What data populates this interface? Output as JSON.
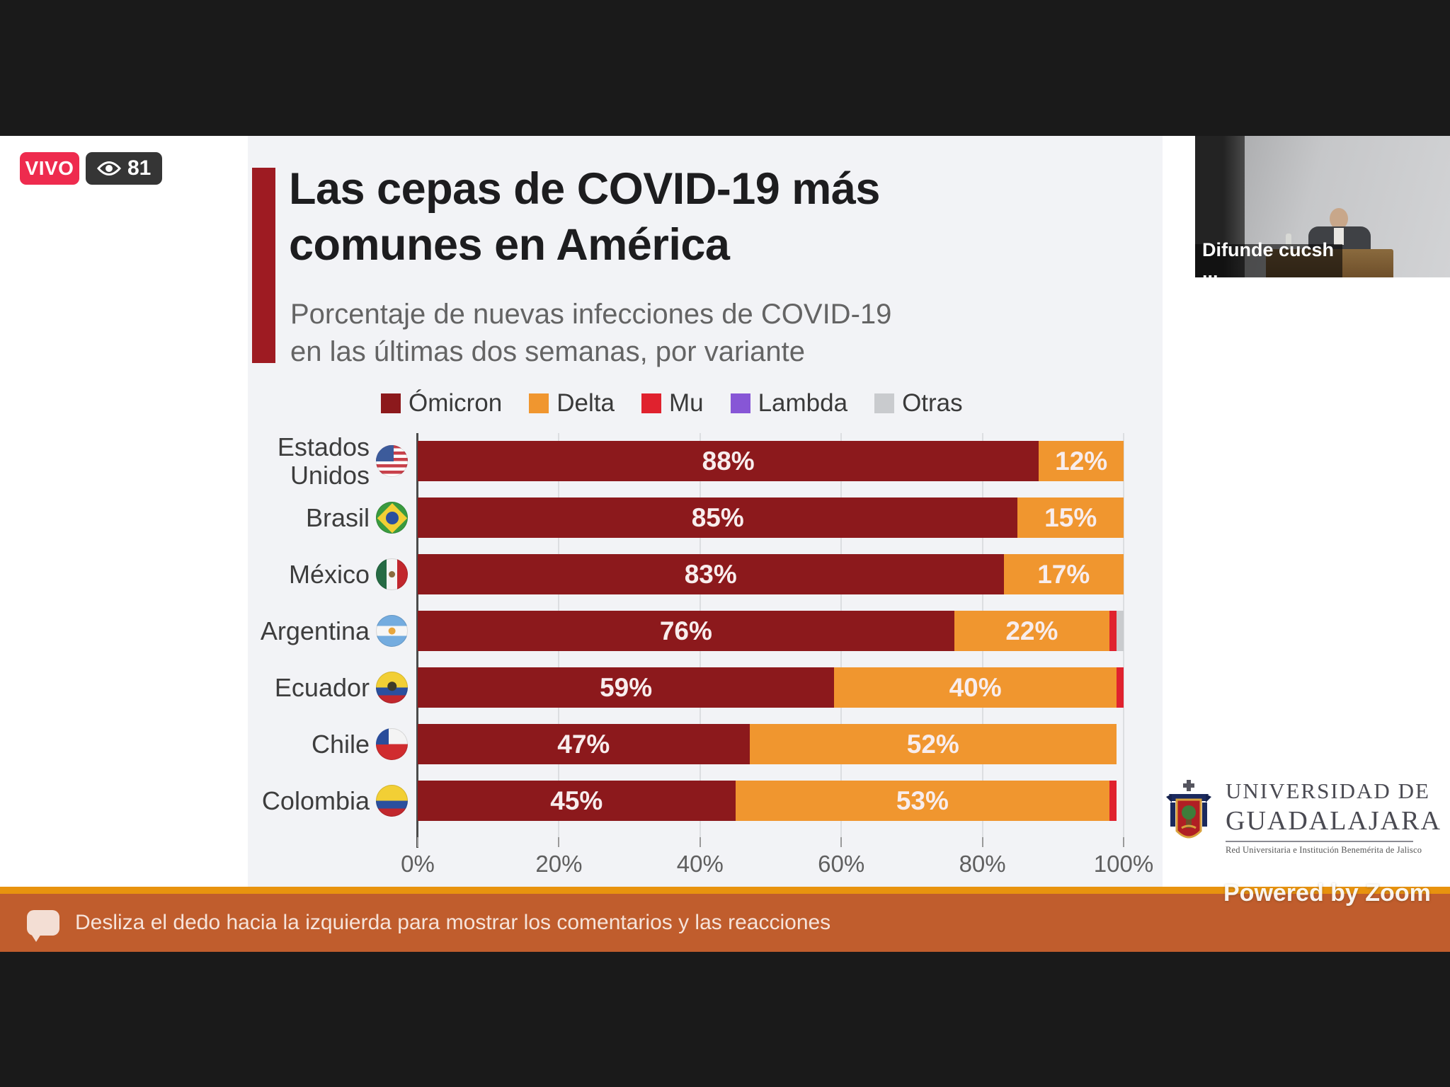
{
  "status": {
    "live_label": "VIVO",
    "viewer_count": "81"
  },
  "video_thumbnail": {
    "label": "Difunde cucsh ..."
  },
  "bottom_bar": {
    "message": "Desliza el dedo hacia la izquierda para mostrar los comentarios y las reacciones"
  },
  "watermark": {
    "powered_by": "Powered by Zoom"
  },
  "university": {
    "name_line1": "UNIVERSIDAD DE",
    "name_line2": "GUADALAJARA",
    "tagline": "Red Universitaria e Institución Benemérita de Jalisco"
  },
  "chart_data": {
    "type": "bar",
    "orientation": "horizontal",
    "stacked": true,
    "title": "Las cepas de COVID-19 más comunes en América",
    "title_lines": [
      "Las cepas de COVID-19 más",
      "comunes en América"
    ],
    "subtitle_lines": [
      "Porcentaje de nuevas infecciones de COVID-19",
      "en las últimas dos semanas, por variante"
    ],
    "xlabel": "",
    "ylabel": "",
    "xlim": [
      0,
      100
    ],
    "x_ticks": [
      "0%",
      "20%",
      "40%",
      "60%",
      "80%",
      "100%"
    ],
    "grid": true,
    "legend_position": "top",
    "legend": [
      {
        "name": "Ómicron",
        "color": "#8c191c"
      },
      {
        "name": "Delta",
        "color": "#f0962f"
      },
      {
        "name": "Mu",
        "color": "#e0222e"
      },
      {
        "name": "Lambda",
        "color": "#8756d6"
      },
      {
        "name": "Otras",
        "color": "#c9cbce"
      }
    ],
    "rows": [
      {
        "country": "Estados Unidos",
        "label_lines": "Estados\nUnidos",
        "flag": "us",
        "segments": [
          {
            "variant": "Ómicron",
            "value": 88,
            "label": "88%"
          },
          {
            "variant": "Delta",
            "value": 12,
            "label": "12%"
          }
        ]
      },
      {
        "country": "Brasil",
        "label_lines": "Brasil",
        "flag": "br",
        "segments": [
          {
            "variant": "Ómicron",
            "value": 85,
            "label": "85%"
          },
          {
            "variant": "Delta",
            "value": 15,
            "label": "15%"
          }
        ]
      },
      {
        "country": "México",
        "label_lines": "México",
        "flag": "mx",
        "segments": [
          {
            "variant": "Ómicron",
            "value": 83,
            "label": "83%"
          },
          {
            "variant": "Delta",
            "value": 17,
            "label": "17%"
          }
        ]
      },
      {
        "country": "Argentina",
        "label_lines": "Argentina",
        "flag": "ar",
        "segments": [
          {
            "variant": "Ómicron",
            "value": 76,
            "label": "76%"
          },
          {
            "variant": "Delta",
            "value": 22,
            "label": "22%"
          },
          {
            "variant": "Mu",
            "value": 1,
            "label": ""
          },
          {
            "variant": "Otras",
            "value": 1,
            "label": ""
          }
        ]
      },
      {
        "country": "Ecuador",
        "label_lines": "Ecuador",
        "flag": "ec",
        "segments": [
          {
            "variant": "Ómicron",
            "value": 59,
            "label": "59%"
          },
          {
            "variant": "Delta",
            "value": 40,
            "label": "40%"
          },
          {
            "variant": "Mu",
            "value": 1,
            "label": ""
          }
        ]
      },
      {
        "country": "Chile",
        "label_lines": "Chile",
        "flag": "cl",
        "segments": [
          {
            "variant": "Ómicron",
            "value": 47,
            "label": "47%"
          },
          {
            "variant": "Delta",
            "value": 52,
            "label": "52%"
          }
        ]
      },
      {
        "country": "Colombia",
        "label_lines": "Colombia",
        "flag": "co",
        "segments": [
          {
            "variant": "Ómicron",
            "value": 45,
            "label": "45%"
          },
          {
            "variant": "Delta",
            "value": 53,
            "label": "53%"
          },
          {
            "variant": "Mu",
            "value": 1,
            "label": ""
          }
        ]
      }
    ]
  },
  "colors": {
    "panel_bg": "#f2f3f6",
    "accent_bar": "#9e1b22",
    "live_badge": "#ee2b4e",
    "amber_strip": "#e8930e",
    "notification_bar": "#c05d2d"
  }
}
